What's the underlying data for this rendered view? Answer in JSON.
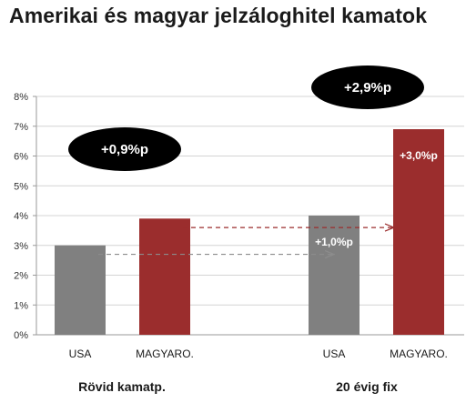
{
  "chart_data": {
    "type": "bar",
    "title": "Amerikai és magyar jelzáloghitel kamatok",
    "ylim": [
      0,
      8
    ],
    "y_ticks": [
      "0%",
      "1%",
      "2%",
      "3%",
      "4%",
      "5%",
      "6%",
      "7%",
      "8%"
    ],
    "grid": true,
    "groups": [
      {
        "label": "Rövid kamatp.",
        "bars": [
          {
            "category": "USA",
            "value": 3.0,
            "color": "#808080",
            "label": ""
          },
          {
            "category": "MAGYARO.",
            "value": 3.9,
            "color": "#9b2d2d",
            "label": ""
          }
        ]
      },
      {
        "label": "20 évig fix",
        "bars": [
          {
            "category": "USA",
            "value": 4.0,
            "color": "#808080",
            "label": "+1,0%p"
          },
          {
            "category": "MAGYARO.",
            "value": 6.9,
            "color": "#9b2d2d",
            "label": "+3,0%p"
          }
        ]
      }
    ],
    "annotations": [
      {
        "text": "+0,9%p",
        "style": "black-ellipse",
        "group": 0
      },
      {
        "text": "+2,9%p",
        "style": "black-ellipse",
        "group": 1
      }
    ],
    "arrows": [
      {
        "from": "Rövid kamatp. USA",
        "to": "20 évig fix USA",
        "at_value": 2.7,
        "color": "#8c8c8c"
      },
      {
        "from": "Rövid kamatp. MAGYARO.",
        "to": "20 évig fix MAGYARO.",
        "at_value": 3.6,
        "color": "#9b2d2d"
      }
    ]
  }
}
